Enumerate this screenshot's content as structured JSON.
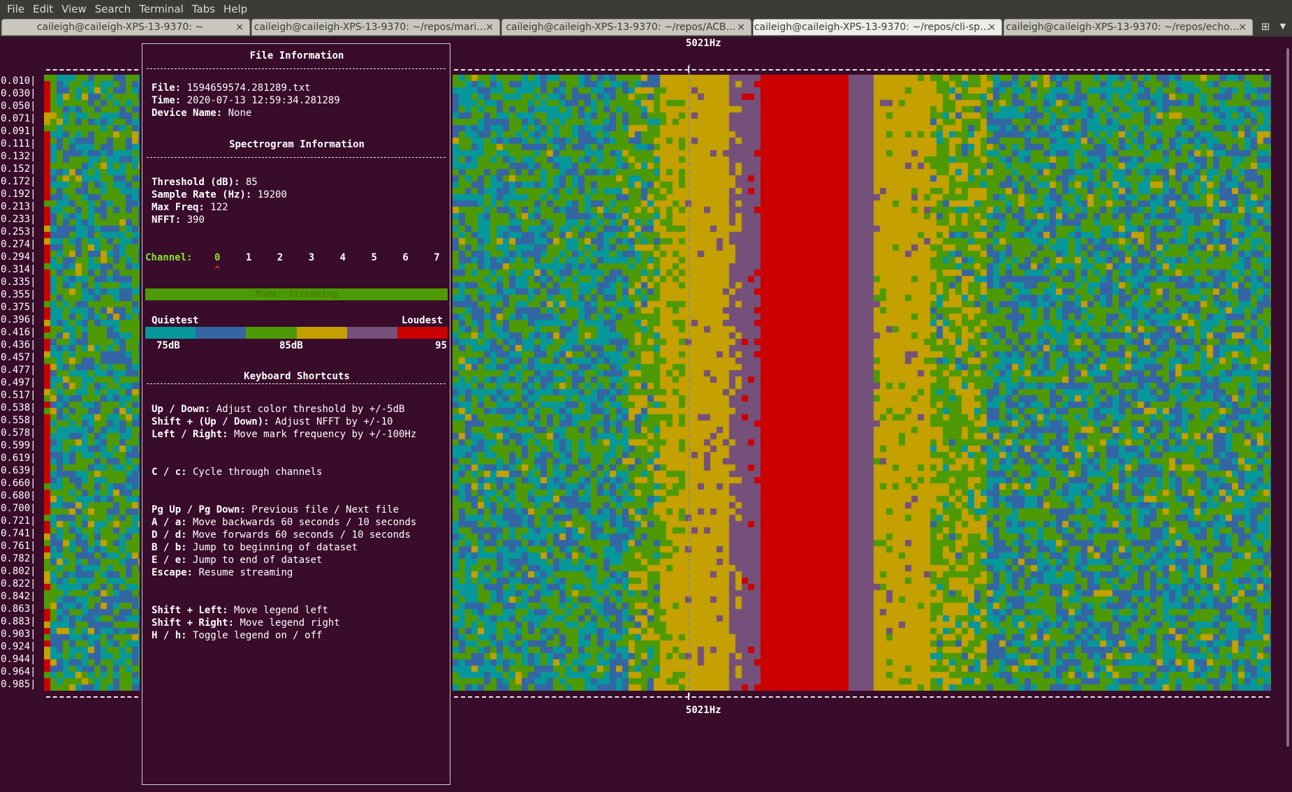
{
  "menu": [
    "File",
    "Edit",
    "View",
    "Search",
    "Terminal",
    "Tabs",
    "Help"
  ],
  "tabs": [
    {
      "label": "caileigh@caileigh-XPS-13-9370: ~",
      "active": false
    },
    {
      "label": "caileigh@caileigh-XPS-13-9370: ~/repos/mari…",
      "active": false
    },
    {
      "label": "caileigh@caileigh-XPS-13-9370: ~/repos/ACB…",
      "active": false
    },
    {
      "label": "caileigh@caileigh-XPS-13-9370: ~/repos/cli-sp…",
      "active": true
    },
    {
      "label": "caileigh@caileigh-XPS-13-9370: ~/repos/echo…",
      "active": false
    }
  ],
  "tab_close": "×",
  "new_tab_icon": "new-tab-icon",
  "marker_freq_top": "5021Hz",
  "marker_freq_bottom": "5021Hz",
  "time_labels": [
    "0.010|",
    "0.030|",
    "0.050|",
    "0.071|",
    "0.091|",
    "0.111|",
    "0.132|",
    "0.152|",
    "0.172|",
    "0.192|",
    "0.213|",
    "0.233|",
    "0.253|",
    "0.274|",
    "0.294|",
    "0.314|",
    "0.335|",
    "0.355|",
    "0.375|",
    "0.396|",
    "0.416|",
    "0.436|",
    "0.457|",
    "0.477|",
    "0.497|",
    "0.517|",
    "0.538|",
    "0.558|",
    "0.578|",
    "0.599|",
    "0.619|",
    "0.639|",
    "0.660|",
    "0.680|",
    "0.700|",
    "0.721|",
    "0.741|",
    "0.761|",
    "0.782|",
    "0.802|",
    "0.822|",
    "0.842|",
    "0.863|",
    "0.883|",
    "0.903|",
    "0.924|",
    "0.944|",
    "0.964|",
    "0.985|"
  ],
  "legend": {
    "file_info_title": "File Information",
    "file_label": "File:",
    "file_value": " 1594659574.281289.txt",
    "time_label": "Time:",
    "time_value": " 2020-07-13 12:59:34.281289",
    "device_label": "Device Name:",
    "device_value": " None",
    "spectro_title": "Spectrogram Information",
    "threshold_label": "Threshold (dB):",
    "threshold_value": " 85",
    "sample_rate_label": "Sample Rate (Hz):",
    "sample_rate_value": " 19200",
    "max_freq_label": "Max Freq:",
    "max_freq_value": " 122",
    "nfft_label": "NFFT:",
    "nfft_value": " 390",
    "channel_label": "Channel:",
    "channels": [
      "0",
      "1",
      "2",
      "3",
      "4",
      "5",
      "6",
      "7"
    ],
    "selected_channel": 0,
    "channel_caret": "^",
    "mode_text": "Mode: Streaming",
    "quietest": "Quietest",
    "loudest": "Loudest",
    "scale_low": "75dB",
    "scale_mid": "85dB",
    "scale_high": "95",
    "shortcuts_title": "Keyboard Shortcuts",
    "shortcuts": [
      {
        "key": "Up / Down:",
        "desc": " Adjust color threshold by +/-5dB"
      },
      {
        "key": "Shift + (Up / Down):",
        "desc": " Adjust NFFT by +/-10"
      },
      {
        "key": "Left / Right:",
        "desc": " Move mark frequency by +/-100Hz"
      },
      {
        "key": "C / c:",
        "desc": " Cycle through channels"
      },
      {
        "key": "Pg Up / Pg Down:",
        "desc": " Previous file / Next file"
      },
      {
        "key": "A / a:",
        "desc": " Move backwards 60 seconds / 10 seconds"
      },
      {
        "key": "D / d:",
        "desc": " Move forwards 60 seconds / 10 seconds"
      },
      {
        "key": "B / b:",
        "desc": " Jump to beginning of dataset"
      },
      {
        "key": "E / e:",
        "desc": " Jump to end of dataset"
      },
      {
        "key": "Escape:",
        "desc": " Resume streaming"
      },
      {
        "key": "Shift + Left:",
        "desc": " Move legend left"
      },
      {
        "key": "Shift + Right:",
        "desc": " Move legend right"
      },
      {
        "key": "H / h:",
        "desc": " Toggle legend on / off"
      }
    ]
  },
  "colors": {
    "teal": "#06989a",
    "blue": "#3465a4",
    "green": "#4e9a06",
    "yellow": "#c4a000",
    "purple": "#75507b",
    "red": "#cc0000",
    "channel_label": "#8ae234",
    "caret": "#ef2929",
    "background": "#380c2a"
  }
}
